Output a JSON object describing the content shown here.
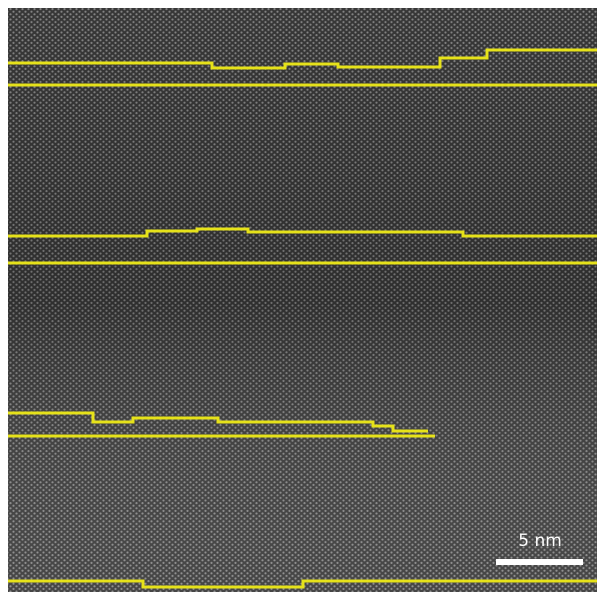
{
  "scale_bar": {
    "label": "5 nm"
  }
}
